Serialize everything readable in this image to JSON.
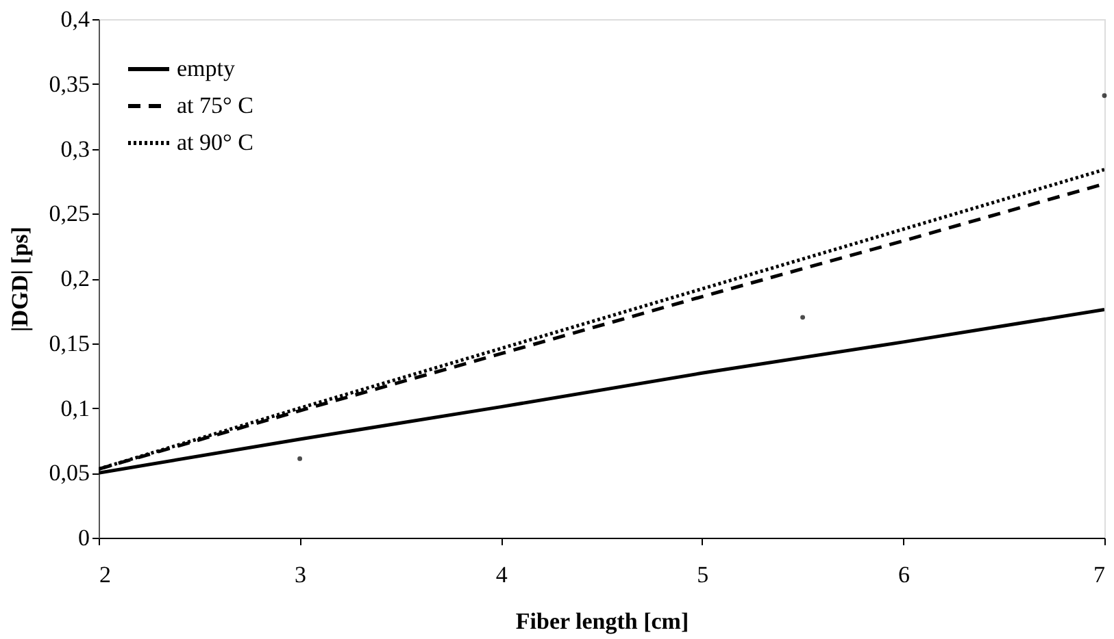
{
  "chart_data": {
    "type": "line",
    "xlabel": "Fiber length [cm]",
    "ylabel": "|DGD| [ps]",
    "xlim": [
      2,
      7
    ],
    "xticks": [
      2,
      3,
      4,
      5,
      6,
      7
    ],
    "ylim": [
      0,
      0.4
    ],
    "yticks": [
      0,
      {
        "value": 0.05,
        "label": "0,05"
      },
      {
        "value": 0.1,
        "label": "0,1"
      },
      {
        "value": 0.15,
        "label": "0,15"
      },
      {
        "value": 0.2,
        "label": "0,2"
      },
      {
        "value": 0.25,
        "label": "0,25"
      },
      {
        "value": 0.3,
        "label": "0,3"
      },
      {
        "value": 0.35,
        "label": "0,35"
      },
      {
        "value": 0.4,
        "label": "0,4"
      }
    ],
    "grid": false,
    "legend": "top left",
    "series": [
      {
        "name": "empty",
        "color": "#000000",
        "line_style": "solid",
        "x": [
          2,
          3,
          4,
          5,
          6,
          7
        ],
        "values": [
          0.05,
          0.076,
          0.101,
          0.127,
          0.151,
          0.176
        ]
      },
      {
        "name": "at 75° C",
        "color": "#000000",
        "line_style": "dashed",
        "x": [
          2,
          3,
          4,
          5,
          6,
          7
        ],
        "values": [
          0.053,
          0.098,
          0.142,
          0.186,
          0.229,
          0.273
        ]
      },
      {
        "name": "at 90° C",
        "color": "#000000",
        "line_style": "dotted",
        "x": [
          2,
          3,
          4,
          5,
          6,
          7
        ],
        "values": [
          0.053,
          0.1,
          0.146,
          0.192,
          0.238,
          0.284
        ]
      },
      {
        "type": "scatter",
        "color": "#000000",
        "marker": "circle",
        "x": [
          3,
          5.5,
          7
        ],
        "values": [
          0.061,
          0.17,
          0.341
        ]
      }
    ]
  }
}
